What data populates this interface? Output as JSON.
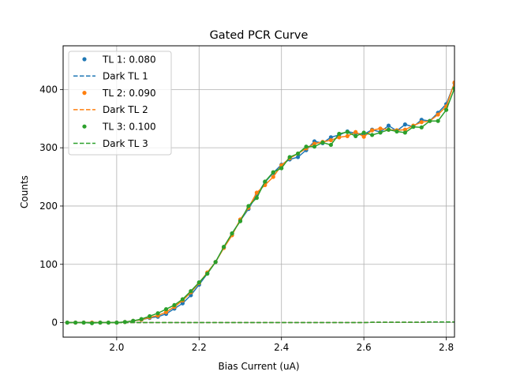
{
  "chart_data": {
    "type": "scatter",
    "title": "Gated PCR Curve",
    "xlabel": "Bias Current (uA)",
    "ylabel": "Counts",
    "xlim": [
      1.87,
      2.82
    ],
    "ylim": [
      -25,
      475
    ],
    "xticks": [
      "2.0",
      "2.2",
      "2.4",
      "2.6",
      "2.8"
    ],
    "yticks": [
      "0",
      "100",
      "200",
      "300",
      "400"
    ],
    "grid": true,
    "legend_position": "top-left",
    "x": [
      1.88,
      1.9,
      1.92,
      1.94,
      1.96,
      1.98,
      2.0,
      2.02,
      2.04,
      2.06,
      2.08,
      2.1,
      2.12,
      2.14,
      2.16,
      2.18,
      2.2,
      2.22,
      2.24,
      2.26,
      2.28,
      2.3,
      2.32,
      2.34,
      2.36,
      2.38,
      2.4,
      2.42,
      2.44,
      2.46,
      2.48,
      2.5,
      2.52,
      2.54,
      2.56,
      2.58,
      2.6,
      2.62,
      2.64,
      2.66,
      2.68,
      2.7,
      2.72,
      2.74,
      2.76,
      2.78,
      2.8,
      2.82
    ],
    "series": [
      {
        "name": "TL 1: 0.080",
        "kind": "scatter",
        "color": "#1f77b4",
        "values": [
          0,
          0,
          0,
          0,
          0,
          0,
          0,
          1,
          3,
          5,
          8,
          10,
          15,
          24,
          33,
          47,
          65,
          84,
          104,
          129,
          153,
          175,
          195,
          219,
          241,
          257,
          271,
          280,
          284,
          296,
          311,
          308,
          318,
          322,
          328,
          325,
          323,
          331,
          327,
          338,
          329,
          340,
          336,
          348,
          346,
          360,
          375,
          411
        ]
      },
      {
        "name": "Dark TL 1",
        "kind": "line",
        "color": "#1f77b4",
        "values": [
          0,
          0,
          0,
          0,
          0,
          0,
          0,
          0,
          0,
          0,
          0,
          0,
          0,
          0,
          0,
          0,
          0,
          0,
          0,
          0,
          0,
          0,
          0,
          0,
          0,
          0,
          0,
          0,
          0,
          0,
          0,
          0,
          0,
          0,
          0,
          0,
          0,
          0.5,
          0.5,
          0.5,
          0.5,
          0.5,
          0.5,
          0.5,
          1,
          1,
          1,
          1
        ]
      },
      {
        "name": "TL 2: 0.090",
        "kind": "scatter",
        "color": "#ff7f0e",
        "values": [
          0,
          0,
          0,
          0,
          0,
          0,
          0,
          1,
          3,
          5,
          9,
          12,
          18,
          27,
          38,
          52,
          68,
          86,
          104,
          128,
          150,
          177,
          197,
          223,
          236,
          250,
          270,
          282,
          290,
          299,
          307,
          310,
          313,
          318,
          320,
          327,
          319,
          330,
          333,
          331,
          330,
          331,
          338,
          344,
          346,
          357,
          371,
          412
        ]
      },
      {
        "name": "Dark TL 2",
        "kind": "line",
        "color": "#ff7f0e",
        "values": [
          0,
          0,
          0,
          0,
          0,
          0,
          0,
          0,
          0,
          0,
          0,
          0,
          0,
          0,
          0,
          0,
          0,
          0,
          0,
          0,
          0,
          0,
          0,
          0,
          0,
          0,
          0,
          0,
          0,
          0,
          0,
          0,
          0,
          0,
          0,
          0,
          0,
          0.5,
          0.5,
          0.5,
          0.5,
          0.5,
          0.5,
          0.5,
          1,
          1,
          1,
          1
        ]
      },
      {
        "name": "TL 3: 0.100",
        "kind": "scatter",
        "color": "#2ca02c",
        "values": [
          0,
          0,
          0,
          -1,
          0,
          0,
          0,
          1,
          3,
          6,
          11,
          16,
          23,
          30,
          40,
          54,
          69,
          84,
          104,
          130,
          153,
          174,
          200,
          214,
          242,
          258,
          265,
          284,
          290,
          302,
          302,
          309,
          305,
          324,
          327,
          320,
          326,
          322,
          326,
          331,
          328,
          326,
          336,
          335,
          346,
          346,
          365,
          402
        ]
      },
      {
        "name": "Dark TL 3",
        "kind": "line",
        "color": "#2ca02c",
        "values": [
          0,
          0,
          0,
          0,
          0,
          0,
          0,
          0,
          0,
          0,
          0,
          0,
          0,
          0,
          0,
          0,
          0,
          0,
          0,
          0,
          0,
          0,
          0,
          0,
          0,
          0,
          0,
          0,
          0,
          0,
          0,
          0,
          0,
          0,
          0,
          0,
          0,
          0.5,
          0.5,
          0.5,
          0.5,
          0.5,
          0.5,
          0.5,
          1,
          1,
          1,
          1
        ]
      }
    ]
  }
}
